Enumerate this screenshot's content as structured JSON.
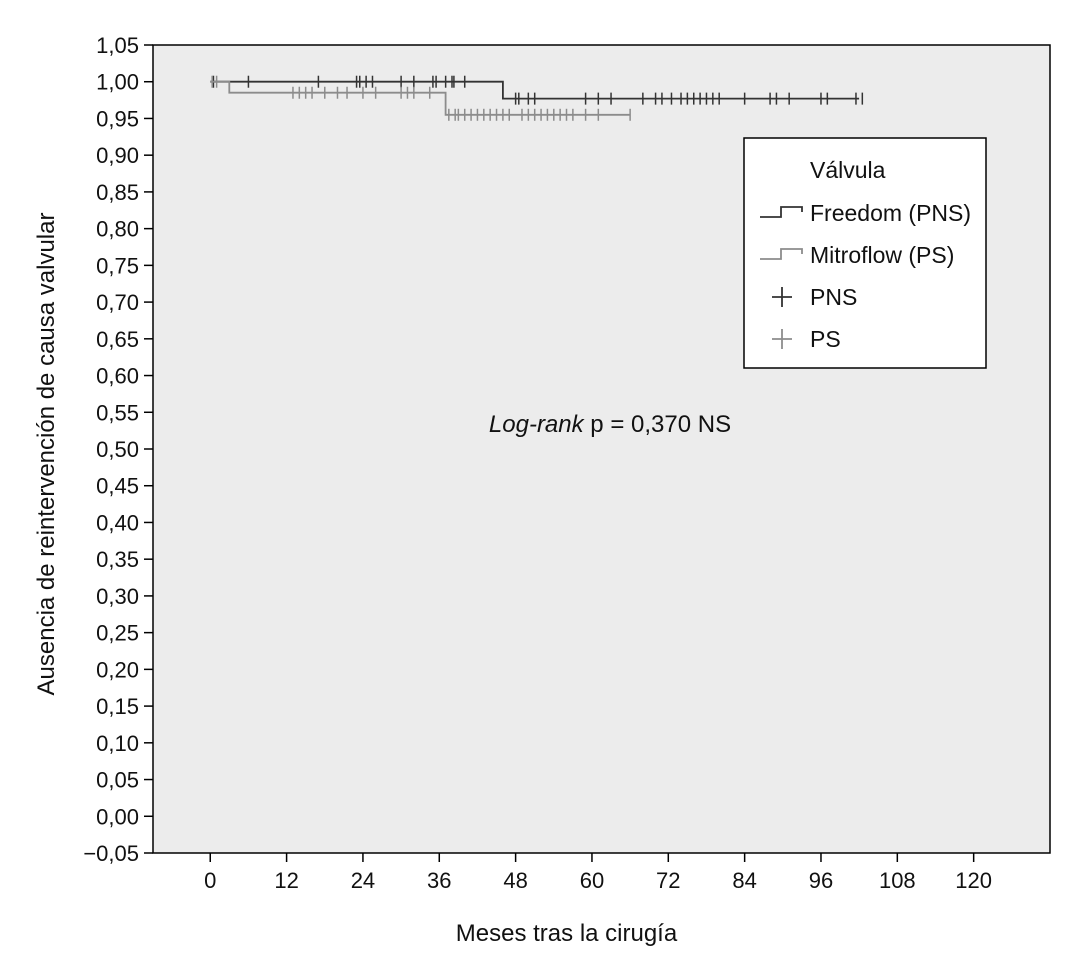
{
  "chart_data": {
    "type": "line",
    "subtype": "kaplan-meier",
    "xlabel": "Meses tras la cirugía",
    "ylabel": "Ausencia de reintervención de causa valvular",
    "xlim": [
      -9,
      132
    ],
    "ylim": [
      -0.05,
      1.05
    ],
    "xticks": [
      0,
      12,
      24,
      36,
      48,
      60,
      72,
      84,
      96,
      108,
      120
    ],
    "xtick_labels": [
      "0",
      "12",
      "24",
      "36",
      "48",
      "60",
      "72",
      "84",
      "96",
      "108",
      "120"
    ],
    "yticks": [
      -0.05,
      0.0,
      0.05,
      0.1,
      0.15,
      0.2,
      0.25,
      0.3,
      0.35,
      0.4,
      0.45,
      0.5,
      0.55,
      0.6,
      0.65,
      0.7,
      0.75,
      0.8,
      0.85,
      0.9,
      0.95,
      1.0,
      1.05
    ],
    "ytick_labels": [
      "−0,05",
      "0,00",
      "0,05",
      "0,10",
      "0,15",
      "0,20",
      "0,25",
      "0,30",
      "0,35",
      "0,40",
      "0,45",
      "0,50",
      "0,55",
      "0,60",
      "0,65",
      "0,70",
      "0,75",
      "0,80",
      "0,85",
      "0,90",
      "0,95",
      "1,00",
      "1,05"
    ],
    "plot_background": "#ececec",
    "annotation": {
      "italic": "Log-rank",
      "text": " p = 0,370 NS"
    },
    "legend": {
      "title": "Válvula",
      "position": "top-right",
      "entries": [
        {
          "label": "Freedom (PNS)",
          "kind": "line",
          "color": "#333333"
        },
        {
          "label": "Mitroflow (PS)",
          "kind": "line",
          "color": "#8c8c8c"
        },
        {
          "label": "PNS",
          "kind": "censor",
          "color": "#333333"
        },
        {
          "label": "PS",
          "kind": "censor",
          "color": "#8c8c8c"
        }
      ]
    },
    "series": [
      {
        "name": "Freedom (PNS)",
        "color": "#333333",
        "steps": [
          [
            0,
            1.0
          ],
          [
            46,
            1.0
          ],
          [
            46,
            0.977
          ],
          [
            102,
            0.977
          ]
        ],
        "censored": [
          [
            0.5,
            1.0
          ],
          [
            6,
            1.0
          ],
          [
            17,
            1.0
          ],
          [
            23,
            1.0
          ],
          [
            23.5,
            1.0
          ],
          [
            24.5,
            1.0
          ],
          [
            25.5,
            1.0
          ],
          [
            30,
            1.0
          ],
          [
            32,
            1.0
          ],
          [
            35,
            1.0
          ],
          [
            35.5,
            1.0
          ],
          [
            37,
            1.0
          ],
          [
            38,
            1.0
          ],
          [
            38.3,
            1.0
          ],
          [
            40,
            1.0
          ],
          [
            48,
            0.977
          ],
          [
            48.5,
            0.977
          ],
          [
            50,
            0.977
          ],
          [
            51,
            0.977
          ],
          [
            59,
            0.977
          ],
          [
            61,
            0.977
          ],
          [
            63,
            0.977
          ],
          [
            68,
            0.977
          ],
          [
            70,
            0.977
          ],
          [
            71,
            0.977
          ],
          [
            72.5,
            0.977
          ],
          [
            74,
            0.977
          ],
          [
            75,
            0.977
          ],
          [
            76,
            0.977
          ],
          [
            77,
            0.977
          ],
          [
            78,
            0.977
          ],
          [
            79,
            0.977
          ],
          [
            80,
            0.977
          ],
          [
            84,
            0.977
          ],
          [
            88,
            0.977
          ],
          [
            89,
            0.977
          ],
          [
            91,
            0.977
          ],
          [
            96,
            0.977
          ],
          [
            97,
            0.977
          ],
          [
            101.5,
            0.977
          ],
          [
            102.5,
            0.977
          ]
        ]
      },
      {
        "name": "Mitroflow (PS)",
        "color": "#8c8c8c",
        "steps": [
          [
            0,
            1.0
          ],
          [
            3,
            1.0
          ],
          [
            3,
            0.985
          ],
          [
            37,
            0.985
          ],
          [
            37,
            0.955
          ],
          [
            66,
            0.955
          ]
        ],
        "censored": [
          [
            0.3,
            1.0
          ],
          [
            1,
            1.0
          ],
          [
            13,
            0.985
          ],
          [
            14,
            0.985
          ],
          [
            15,
            0.985
          ],
          [
            16,
            0.985
          ],
          [
            18,
            0.985
          ],
          [
            20,
            0.985
          ],
          [
            21.5,
            0.985
          ],
          [
            24,
            0.985
          ],
          [
            26,
            0.985
          ],
          [
            30,
            0.985
          ],
          [
            31,
            0.985
          ],
          [
            32,
            0.985
          ],
          [
            34.5,
            0.985
          ],
          [
            37.5,
            0.955
          ],
          [
            38.5,
            0.955
          ],
          [
            39,
            0.955
          ],
          [
            40,
            0.955
          ],
          [
            41,
            0.955
          ],
          [
            42,
            0.955
          ],
          [
            43,
            0.955
          ],
          [
            44,
            0.955
          ],
          [
            45,
            0.955
          ],
          [
            46,
            0.955
          ],
          [
            47,
            0.955
          ],
          [
            49,
            0.955
          ],
          [
            50,
            0.955
          ],
          [
            51,
            0.955
          ],
          [
            52,
            0.955
          ],
          [
            53,
            0.955
          ],
          [
            54,
            0.955
          ],
          [
            55,
            0.955
          ],
          [
            56,
            0.955
          ],
          [
            57,
            0.955
          ],
          [
            59,
            0.955
          ],
          [
            61,
            0.955
          ],
          [
            66,
            0.955
          ]
        ]
      }
    ]
  }
}
